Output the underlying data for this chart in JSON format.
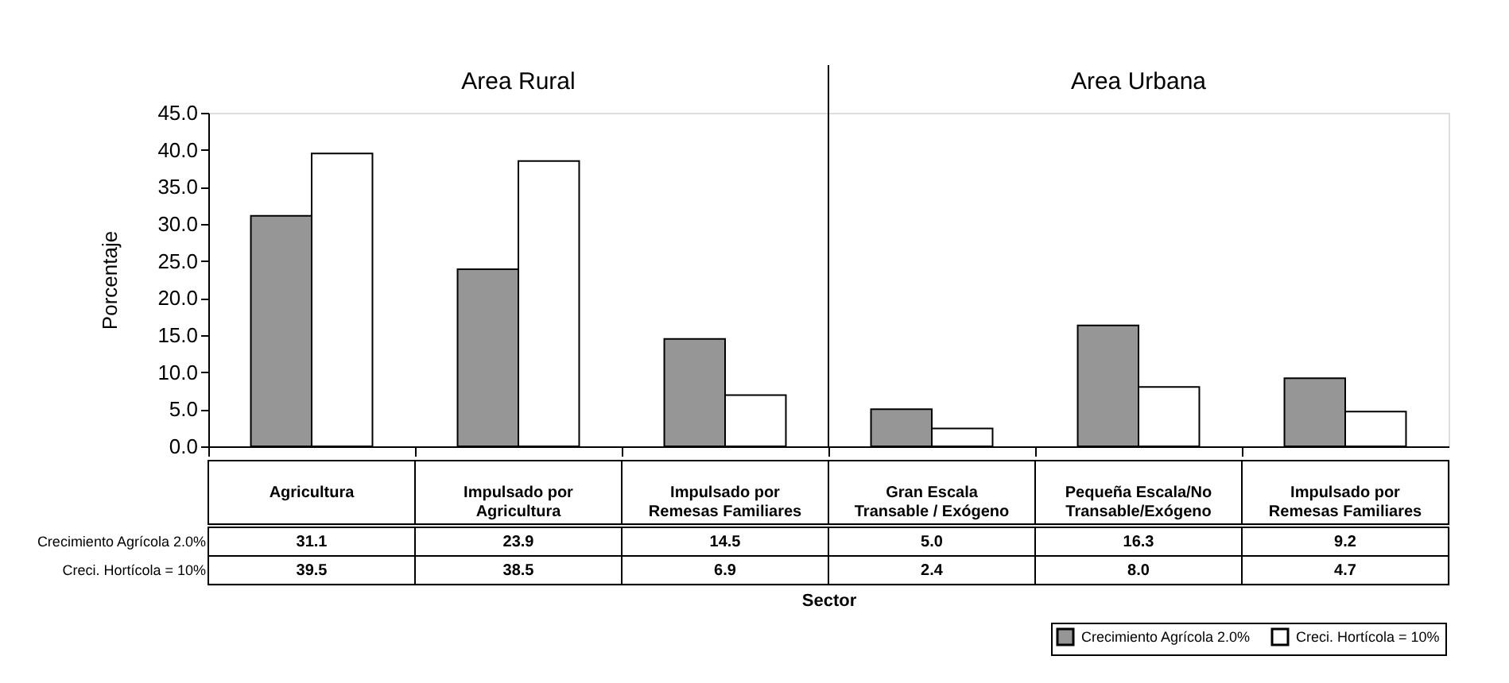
{
  "chart_data": {
    "type": "bar",
    "annotations": [
      "Area Rural",
      "Area Urbana"
    ],
    "categories": [
      "Agricultura",
      "Impulsado por Agricultura",
      "Impulsado por Remesas Familiares",
      "Gran Escala Transable / Exógeno",
      "Pequeña Escala/No Transable/Exógeno",
      "Impulsado por Remesas Familiares"
    ],
    "series": [
      {
        "name": "Crecimiento Agrícola 2.0%",
        "color": "#969696",
        "values": [
          31.1,
          23.9,
          14.5,
          5.0,
          16.3,
          9.2
        ],
        "value_labels": [
          "31.1",
          "23.9",
          "14.5",
          "5.0",
          "16.3",
          "9.2"
        ]
      },
      {
        "name": "Creci. Hortícola = 10%",
        "color": "#ffffff",
        "values": [
          39.5,
          38.5,
          6.9,
          2.4,
          8.0,
          4.7
        ],
        "value_labels": [
          "39.5",
          "38.5",
          "6.9",
          "2.4",
          "8.0",
          "4.7"
        ]
      }
    ],
    "ylabel": "Porcentaje",
    "xlabel": "Sector",
    "ylim": [
      0,
      45
    ],
    "yticks": [
      {
        "value": 0,
        "label": "0.0"
      },
      {
        "value": 5,
        "label": "5.0"
      },
      {
        "value": 10,
        "label": "10.0"
      },
      {
        "value": 15,
        "label": "15.0"
      },
      {
        "value": 20,
        "label": "20.0"
      },
      {
        "value": 25,
        "label": "25.0"
      },
      {
        "value": 30,
        "label": "30.0"
      },
      {
        "value": 35,
        "label": "35.0"
      },
      {
        "value": 40,
        "label": "40.0"
      },
      {
        "value": 45,
        "label": "45.0"
      }
    ],
    "grid": false,
    "legend": "bottom right"
  }
}
